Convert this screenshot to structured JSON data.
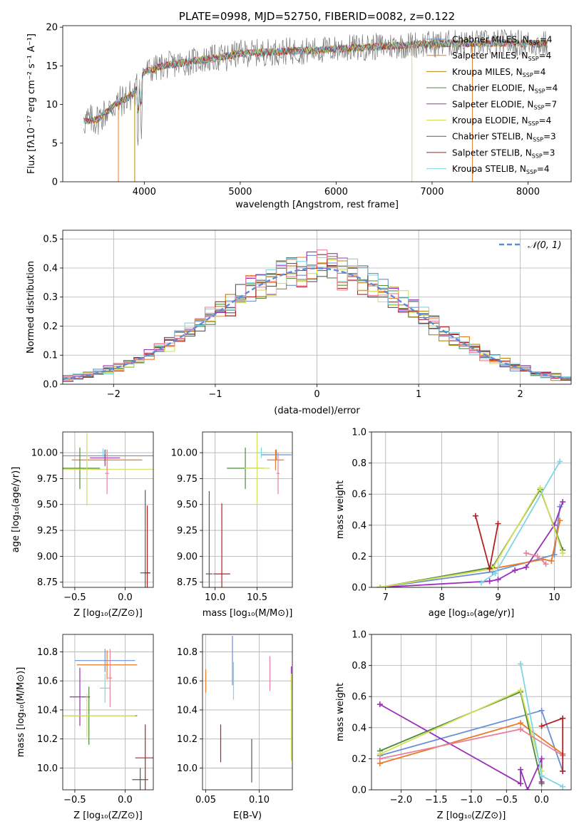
{
  "colors": {
    "Chabrier MILES": "#6a8fd8",
    "Salpeter MILES": "#e87b2a",
    "Kroupa MILES": "#b8860b",
    "Chabrier ELODIE": "#4f8a3c",
    "Salpeter ELODIE": "#9b30b8",
    "Kroupa ELODIE": "#d4e05a",
    "Chabrier STELIB": "#5a5a5a",
    "Salpeter STELIB": "#b22222",
    "Kroupa STELIB": "#7fd6e0",
    "pink": "#e8829a",
    "normal": "#5b8bd9"
  },
  "chart_data": [
    {
      "id": "spectrum",
      "type": "line",
      "title": "PLATE=0998, MJD=52750, FIBERID=0082, z=0.122",
      "xlabel": "wavelength [Angstrom, rest frame]",
      "ylabel": "Flux [fλ10⁻¹⁷ erg cm⁻² s⁻¹ A⁻¹]",
      "xlim": [
        3150,
        8450
      ],
      "ylim": [
        0,
        20.2
      ],
      "xticks": [
        4000,
        5000,
        6000,
        7000,
        8000
      ],
      "yticks": [
        0,
        5,
        10,
        15,
        20
      ],
      "legend": "top-right",
      "legend_entries": [
        {
          "label": "Chabrier MILES, N",
          "sub": "SSP",
          "tail": "=4",
          "color": "#6a8fd8"
        },
        {
          "label": "Salpeter MILES, N",
          "sub": "SSP",
          "tail": "=4",
          "color": "#e87b2a"
        },
        {
          "label": "Kroupa MILES, N",
          "sub": "SSP",
          "tail": "=4",
          "color": "#b8860b"
        },
        {
          "label": "Chabrier ELODIE, N",
          "sub": "SSP",
          "tail": "=4",
          "color": "#4f8a3c"
        },
        {
          "label": "Salpeter ELODIE, N",
          "sub": "SSP",
          "tail": "=7",
          "color": "#9b30b8"
        },
        {
          "label": "Kroupa ELODIE, N",
          "sub": "SSP",
          "tail": "=4",
          "color": "#d4e05a"
        },
        {
          "label": "Chabrier STELIB, N",
          "sub": "SSP",
          "tail": "=3",
          "color": "#5a5a5a"
        },
        {
          "label": "Salpeter STELIB, N",
          "sub": "SSP",
          "tail": "=3",
          "color": "#b22222"
        },
        {
          "label": "Kroupa STELIB, N",
          "sub": "SSP",
          "tail": "=4",
          "color": "#7fd6e0"
        }
      ],
      "continuum": [
        [
          3370,
          7.9
        ],
        [
          3500,
          8.0
        ],
        [
          3700,
          10.0
        ],
        [
          3900,
          11.5
        ],
        [
          4000,
          14.2
        ],
        [
          4200,
          15.0
        ],
        [
          4500,
          15.6
        ],
        [
          4800,
          16.1
        ],
        [
          5000,
          16.6
        ],
        [
          5200,
          16.7
        ],
        [
          5500,
          16.9
        ],
        [
          5800,
          17.0
        ],
        [
          6000,
          17.2
        ],
        [
          6300,
          17.4
        ],
        [
          6600,
          17.6
        ],
        [
          6900,
          17.8
        ],
        [
          7200,
          17.9
        ],
        [
          7500,
          17.9
        ],
        [
          7800,
          18.0
        ],
        [
          8200,
          17.8
        ]
      ],
      "dips": [
        [
          3730,
          3620,
          0
        ],
        [
          3900,
          3890,
          0
        ],
        [
          6790,
          6800,
          0
        ],
        [
          7420,
          7430,
          0
        ]
      ]
    },
    {
      "id": "residuals",
      "type": "line",
      "xlabel": "(data-model)/error",
      "ylabel": "Normed distribution",
      "xlim": [
        -2.5,
        2.5
      ],
      "ylim": [
        0,
        0.53
      ],
      "xticks": [
        -2,
        -1,
        0,
        1,
        2
      ],
      "yticks": [
        0.0,
        0.1,
        0.2,
        0.3,
        0.4,
        0.5
      ],
      "legend": "top-right",
      "legend_label": "𝒩(0, 1)",
      "bin_width": 0.1
    },
    {
      "id": "age-vs-Z",
      "type": "scatter",
      "xlabel": "Z [log₁₀(Z/Z⊙)]",
      "ylabel": "age  [log₁₀(age/yr)]",
      "xlim": [
        -0.62,
        0.28
      ],
      "ylim": [
        8.7,
        10.2
      ],
      "xticks": [
        -0.5,
        0.0
      ],
      "yticks": [
        8.75,
        9.0,
        9.25,
        9.5,
        9.75,
        10.0
      ],
      "points": [
        {
          "x": -0.2,
          "y": 9.97,
          "xerr": 0.6,
          "yerr": 0.05,
          "color": "#6a8fd8"
        },
        {
          "x": -0.18,
          "y": 9.93,
          "xerr": 0.35,
          "yerr": 0.1,
          "color": "#e87b2a"
        },
        {
          "x": -0.45,
          "y": 9.85,
          "xerr": 0.2,
          "yerr": 0.2,
          "color": "#4f8a3c"
        },
        {
          "x": -0.2,
          "y": 9.95,
          "xerr": 0.15,
          "yerr": 0.08,
          "color": "#9b30b8"
        },
        {
          "x": -0.38,
          "y": 9.84,
          "xerr": 0.7,
          "yerr": 0.35,
          "color": "#d4e05a"
        },
        {
          "x": 0.2,
          "y": 8.84,
          "xerr": 0.05,
          "yerr": 0.8,
          "color": "#5a5a5a"
        },
        {
          "x": 0.22,
          "y": 8.84,
          "xerr": 0.03,
          "yerr": 0.65,
          "color": "#b22222"
        },
        {
          "x": -0.22,
          "y": 10.0,
          "xerr": 0.05,
          "yerr": 0.04,
          "color": "#7fd6e0"
        },
        {
          "x": -0.18,
          "y": 9.8,
          "xerr": 0.02,
          "yerr": 0.2,
          "color": "#e8829a"
        }
      ]
    },
    {
      "id": "age-vs-mass",
      "type": "scatter",
      "xlabel": "mass [log₁₀(M/M⊙)]",
      "ylabel": "",
      "xlim": [
        9.85,
        10.92
      ],
      "ylim": [
        8.7,
        10.2
      ],
      "xticks": [
        10.0,
        10.5
      ],
      "yticks": [
        8.75,
        9.0,
        9.25,
        9.5,
        9.75,
        10.0
      ],
      "points": [
        {
          "x": 10.73,
          "y": 9.98,
          "xerr": 0.18,
          "yerr": 0.05,
          "color": "#6a8fd8"
        },
        {
          "x": 10.72,
          "y": 9.93,
          "xerr": 0.1,
          "yerr": 0.1,
          "color": "#e87b2a"
        },
        {
          "x": 10.36,
          "y": 9.85,
          "xerr": 0.22,
          "yerr": 0.2,
          "color": "#4f8a3c"
        },
        {
          "x": 10.5,
          "y": 9.85,
          "xerr": 0.15,
          "yerr": 0.35,
          "color": "#d4e05a"
        },
        {
          "x": 9.93,
          "y": 8.83,
          "xerr": 0.04,
          "yerr": 0.8,
          "color": "#5a5a5a"
        },
        {
          "x": 10.08,
          "y": 8.83,
          "xerr": 0.1,
          "yerr": 0.68,
          "color": "#b22222"
        },
        {
          "x": 10.55,
          "y": 10.0,
          "xerr": 0.05,
          "yerr": 0.05,
          "color": "#7fd6e0"
        },
        {
          "x": 10.75,
          "y": 9.8,
          "xerr": 0.02,
          "yerr": 0.2,
          "color": "#e8829a"
        }
      ]
    },
    {
      "id": "massweight-vs-age",
      "type": "line",
      "xlabel": "age  [log₁₀(age/yr)]",
      "ylabel": "mass weight",
      "xlim": [
        6.75,
        10.3
      ],
      "ylim": [
        0,
        1.0
      ],
      "xticks": [
        7,
        8,
        9,
        10
      ],
      "yticks": [
        0.0,
        0.2,
        0.4,
        0.6,
        0.8,
        1.0
      ],
      "series": [
        {
          "color": "#6a8fd8",
          "x": [
            6.9,
            8.9,
            10.0,
            10.1
          ],
          "y": [
            0.0,
            0.1,
            0.21,
            0.52
          ]
        },
        {
          "color": "#e87b2a",
          "x": [
            6.9,
            8.9,
            9.8,
            9.95,
            10.1
          ],
          "y": [
            0.0,
            0.12,
            0.18,
            0.17,
            0.43
          ]
        },
        {
          "color": "#4f8a3c",
          "x": [
            6.9,
            8.9,
            9.75,
            10.15
          ],
          "y": [
            0.0,
            0.13,
            0.63,
            0.24
          ]
        },
        {
          "color": "#9b30b8",
          "x": [
            6.9,
            8.85,
            9.0,
            9.3,
            9.5,
            10.0,
            10.15
          ],
          "y": [
            0.0,
            0.04,
            0.05,
            0.11,
            0.13,
            0.4,
            0.55
          ]
        },
        {
          "color": "#d4e05a",
          "x": [
            6.9,
            8.9,
            9.75,
            10.15
          ],
          "y": [
            0.0,
            0.12,
            0.64,
            0.22
          ]
        },
        {
          "color": "#7fd6e0",
          "x": [
            8.7,
            8.95,
            10.1
          ],
          "y": [
            0.03,
            0.09,
            0.81
          ]
        },
        {
          "color": "#e8829a",
          "x": [
            9.5,
            9.7,
            9.85
          ],
          "y": [
            0.22,
            0.2,
            0.15
          ]
        },
        {
          "color": "#b22222",
          "x": [
            8.6,
            8.85,
            9.0
          ],
          "y": [
            0.46,
            0.12,
            0.41
          ]
        }
      ]
    },
    {
      "id": "mass-vs-Z",
      "type": "scatter",
      "xlabel": "Z [log₁₀(Z/Z⊙)]",
      "ylabel": "mass [log₁₀(M/M⊙)]",
      "xlim": [
        -0.62,
        0.28
      ],
      "ylim": [
        9.85,
        10.92
      ],
      "xticks": [
        -0.5,
        0.0
      ],
      "yticks": [
        10.0,
        10.2,
        10.4,
        10.6,
        10.8
      ],
      "points": [
        {
          "x": -0.2,
          "y": 10.74,
          "xerr": 0.3,
          "yerr": 0.08,
          "color": "#6a8fd8"
        },
        {
          "x": -0.18,
          "y": 10.71,
          "xerr": 0.3,
          "yerr": 0.1,
          "color": "#e87b2a"
        },
        {
          "x": -0.36,
          "y": 10.36,
          "xerr": 0.48,
          "yerr": 0.2,
          "color": "#4f8a3c"
        },
        {
          "x": -0.45,
          "y": 10.49,
          "xerr": 0.1,
          "yerr": 0.2,
          "color": "#9b30b8"
        },
        {
          "x": -0.38,
          "y": 10.36,
          "xerr": 0.48,
          "yerr": 0.15,
          "color": "#d4e05a"
        },
        {
          "x": 0.15,
          "y": 9.92,
          "xerr": 0.08,
          "yerr": 0.08,
          "color": "#5a5a5a"
        },
        {
          "x": 0.2,
          "y": 10.07,
          "xerr": 0.1,
          "yerr": 0.23,
          "color": "#b22222"
        },
        {
          "x": -0.2,
          "y": 10.55,
          "xerr": 0.05,
          "yerr": 0.1,
          "color": "#7fd6e0"
        },
        {
          "x": -0.15,
          "y": 10.62,
          "xerr": 0.02,
          "yerr": 0.2,
          "color": "#e8829a"
        }
      ]
    },
    {
      "id": "mass-vs-EBV",
      "type": "scatter",
      "xlabel": "E(B-V)",
      "ylabel": "",
      "xlim": [
        0.047,
        0.131
      ],
      "ylim": [
        9.85,
        10.92
      ],
      "xticks": [
        0.05,
        0.1
      ],
      "yticks": [
        10.0,
        10.2,
        10.4,
        10.6,
        10.8
      ],
      "points": [
        {
          "x": 0.075,
          "y": 10.74,
          "yerr": 0.17,
          "color": "#6a8fd8"
        },
        {
          "x": 0.05,
          "y": 10.6,
          "yerr": 0.08,
          "color": "#e87b2a"
        },
        {
          "x": 0.13,
          "y": 10.62,
          "yerr": 0.08,
          "color": "#9b30b8"
        },
        {
          "x": 0.13,
          "y": 10.35,
          "yerr": 0.3,
          "color": "#d4e05a"
        },
        {
          "x": 0.093,
          "y": 10.05,
          "yerr": 0.15,
          "color": "#5a5a5a"
        },
        {
          "x": 0.064,
          "y": 10.17,
          "yerr": 0.13,
          "color": "#b22222"
        },
        {
          "x": 0.076,
          "y": 10.6,
          "yerr": 0.13,
          "color": "#7fd6e0"
        },
        {
          "x": 0.11,
          "y": 10.65,
          "yerr": 0.12,
          "color": "#e8829a"
        }
      ]
    },
    {
      "id": "massweight-vs-Z",
      "type": "line",
      "xlabel": "Z [log₁₀(Z/Z⊙)]",
      "ylabel": "mass weight",
      "xlim": [
        -2.42,
        0.42
      ],
      "ylim": [
        0,
        1.0
      ],
      "xticks": [
        -2.0,
        -1.5,
        -1.0,
        -0.5,
        0.0
      ],
      "yticks": [
        0.0,
        0.2,
        0.4,
        0.6,
        0.8,
        1.0
      ],
      "series": [
        {
          "color": "#6a8fd8",
          "x": [
            -2.3,
            0.0,
            0.3
          ],
          "y": [
            0.22,
            0.51,
            0.12
          ]
        },
        {
          "color": "#e87b2a",
          "x": [
            -2.3,
            -0.3,
            0.3
          ],
          "y": [
            0.17,
            0.43,
            0.23
          ]
        },
        {
          "color": "#4f8a3c",
          "x": [
            -2.3,
            -0.3,
            0.0
          ],
          "y": [
            0.25,
            0.63,
            0.04
          ]
        },
        {
          "color": "#9b30b8",
          "x": [
            -2.3,
            -0.3,
            -0.3,
            -0.2,
            0.0,
            0.0
          ],
          "y": [
            0.55,
            0.04,
            0.13,
            0.0,
            0.2,
            0.05
          ]
        },
        {
          "color": "#d4e05a",
          "x": [
            -2.3,
            -0.3,
            0.0
          ],
          "y": [
            0.23,
            0.64,
            0.12
          ]
        },
        {
          "color": "#7fd6e0",
          "x": [
            -0.3,
            0.0,
            0.3
          ],
          "y": [
            0.81,
            0.09,
            0.02
          ]
        },
        {
          "color": "#e8829a",
          "x": [
            -2.3,
            -0.3,
            0.3
          ],
          "y": [
            0.2,
            0.39,
            0.22
          ]
        },
        {
          "color": "#b22222",
          "x": [
            0.0,
            0.3,
            0.3
          ],
          "y": [
            0.41,
            0.46,
            0.12
          ]
        }
      ]
    }
  ]
}
